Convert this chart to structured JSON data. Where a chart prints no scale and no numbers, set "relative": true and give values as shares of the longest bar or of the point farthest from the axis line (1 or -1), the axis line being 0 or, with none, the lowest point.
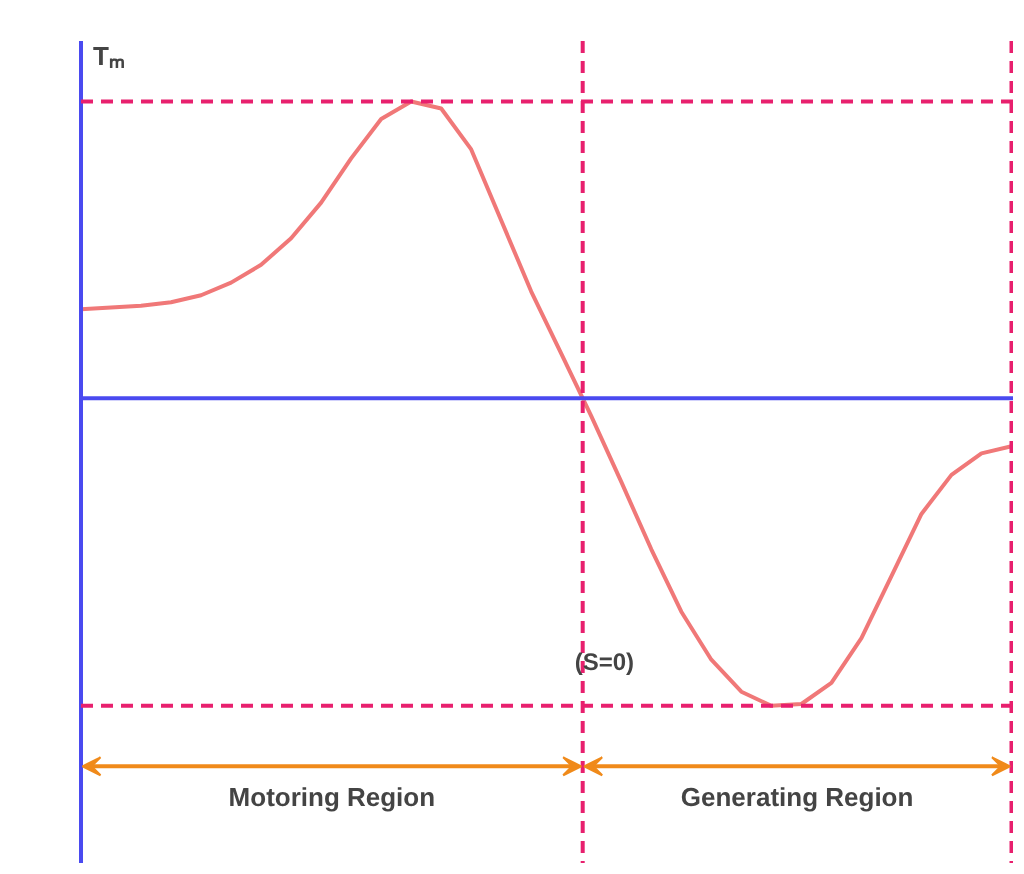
{
  "chart_data": {
    "type": "line",
    "relative": true,
    "ylabel": "Tₘ",
    "categories": [
      null,
      null,
      null,
      null,
      null,
      null,
      null,
      null,
      null,
      null,
      null,
      null,
      null,
      null,
      null,
      null,
      null,
      null,
      null,
      null,
      null,
      null,
      null,
      null,
      null,
      null,
      null,
      null,
      null,
      null,
      null,
      null
    ],
    "series": [
      {
        "color": "#f07878",
        "values": [
          0.289,
          0.295,
          0.301,
          0.312,
          0.335,
          0.376,
          0.434,
          0.52,
          0.636,
          0.78,
          0.908,
          0.965,
          0.942,
          0.809,
          0.578,
          0.347,
          0.145,
          -0.058,
          -0.272,
          -0.491,
          -0.694,
          -0.85,
          -0.954,
          -1,
          -0.994,
          -0.925,
          -0.78,
          -0.578,
          -0.376,
          -0.249,
          -0.179,
          -0.156
        ]
      }
    ],
    "ref_lines": [
      {
        "axis": "y",
        "value": 0.965,
        "color": "#e8206e",
        "line_style": "dashed"
      },
      {
        "axis": "y",
        "value": -1,
        "color": "#e8206e",
        "line_style": "dashed"
      },
      {
        "axis": "y",
        "value": 0,
        "color": "#4a4af0",
        "line_style": "solid"
      }
    ],
    "annotations": [
      "(S=0)",
      "Motoring Region",
      "Generating Region"
    ],
    "grid": false,
    "marker": "none",
    "line_style": "solid"
  }
}
